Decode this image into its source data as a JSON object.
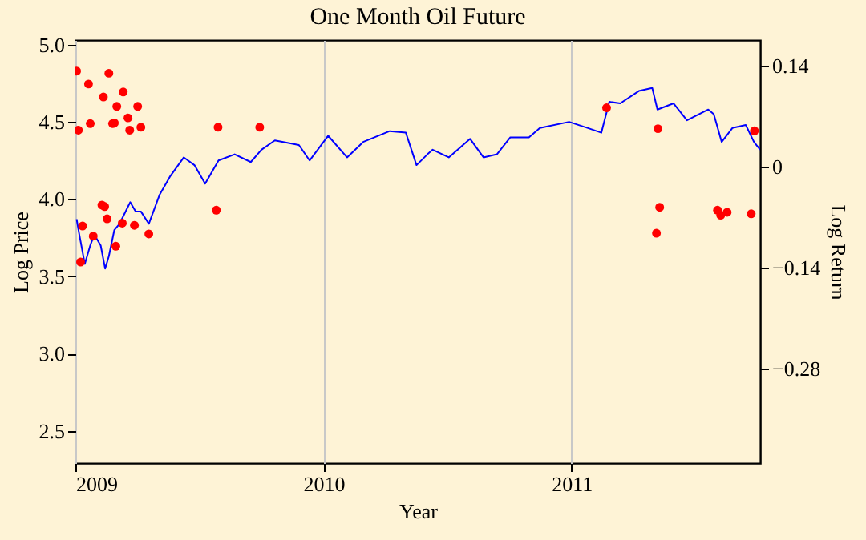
{
  "chart_data": {
    "type": "line",
    "title": "One Month Oil Future",
    "xlabel": "Year",
    "ylabel": "Log Price",
    "y2label": "Log Return",
    "xlim": [
      2009,
      2011.76
    ],
    "xticks": [
      2009,
      2010,
      2011
    ],
    "ylim": [
      2.29,
      5.03
    ],
    "yticks": [
      {
        "value": 2.5,
        "label": "2.5"
      },
      {
        "value": 3,
        "label": "3.0"
      },
      {
        "value": 3.5,
        "label": "3.5"
      },
      {
        "value": 4,
        "label": "4.0"
      },
      {
        "value": 4.5,
        "label": "4.5"
      },
      {
        "value": 5,
        "label": "5.0"
      }
    ],
    "y2lim": [
      -0.411,
      0.176
    ],
    "y2ticks": [
      -0.28,
      -0.14,
      0,
      0.14
    ],
    "grid": "x",
    "series": [
      {
        "color": "#0000ff",
        "x": [
          2009.005,
          2009.016,
          2009.038,
          2009.06,
          2009.076,
          2009.102,
          2009.12,
          2009.135,
          2009.157,
          2009.178,
          2009.221,
          2009.243,
          2009.264,
          2009.296,
          2009.34,
          2009.383,
          2009.437,
          2009.48,
          2009.523,
          2009.577,
          2009.642,
          2009.707,
          2009.75,
          2009.804,
          2009.901,
          2009.944,
          2010.019,
          2010.095,
          2010.16,
          2010.267,
          2010.332,
          2010.375,
          2010.419,
          2010.44,
          2010.505,
          2010.591,
          2010.645,
          2010.699,
          2010.753,
          2010.828,
          2010.872,
          2010.99,
          2011.066,
          2011.12,
          2011.152,
          2011.196,
          2011.271,
          2011.325,
          2011.346,
          2011.411,
          2011.465,
          2011.551,
          2011.573,
          2011.605,
          2011.648,
          2011.702,
          2011.735,
          2011.76
        ],
        "values": [
          3.87,
          3.77,
          3.58,
          3.7,
          3.77,
          3.7,
          3.55,
          3.63,
          3.8,
          3.84,
          3.98,
          3.92,
          3.92,
          3.84,
          4.03,
          4.15,
          4.27,
          4.22,
          4.1,
          4.25,
          4.29,
          4.24,
          4.32,
          4.38,
          4.35,
          4.25,
          4.41,
          4.27,
          4.37,
          4.44,
          4.43,
          4.22,
          4.29,
          4.32,
          4.27,
          4.39,
          4.27,
          4.29,
          4.4,
          4.4,
          4.46,
          4.5,
          4.46,
          4.43,
          4.63,
          4.62,
          4.7,
          4.72,
          4.58,
          4.62,
          4.51,
          4.58,
          4.55,
          4.37,
          4.46,
          4.48,
          4.37,
          4.32
        ]
      },
      {
        "type": "scatter",
        "axis": "y2",
        "color": "#ff0000",
        "marker": "circle",
        "x": [
          2009.005,
          2009.012,
          2009.021,
          2009.029,
          2009.053,
          2009.06,
          2009.072,
          2009.107,
          2009.113,
          2009.118,
          2009.128,
          2009.135,
          2009.15,
          2009.157,
          2009.163,
          2009.167,
          2009.189,
          2009.193,
          2009.212,
          2009.219,
          2009.238,
          2009.251,
          2009.264,
          2009.296,
          2009.568,
          2009.575,
          2009.743,
          2011.141,
          2011.342,
          2011.348,
          2011.355,
          2011.588,
          2011.601,
          2011.627,
          2011.724,
          2011.737
        ],
        "values": [
          0.133,
          0.051,
          -0.132,
          -0.082,
          0.115,
          0.06,
          -0.096,
          -0.053,
          0.097,
          -0.055,
          -0.072,
          0.13,
          0.06,
          0.061,
          -0.11,
          0.084,
          -0.078,
          0.104,
          0.068,
          0.051,
          -0.081,
          0.084,
          0.055,
          -0.093,
          -0.06,
          0.055,
          0.055,
          0.082,
          -0.092,
          0.053,
          -0.056,
          -0.06,
          -0.067,
          -0.063,
          -0.065,
          0.05
        ]
      }
    ]
  }
}
